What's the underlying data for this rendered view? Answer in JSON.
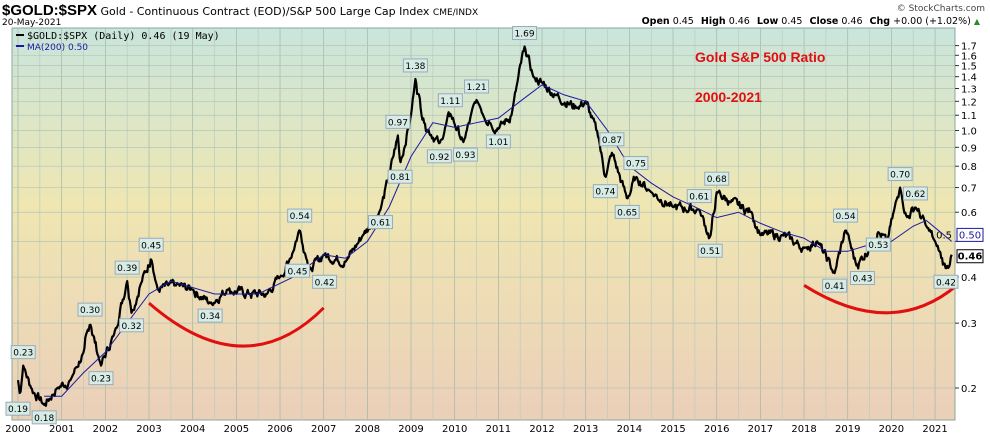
{
  "header": {
    "symbol": "$GOLD:$SPX",
    "description": "Gold - Continuous Contract (EOD)/S&P 500 Large Cap Index",
    "exchange": "CME/INDX",
    "date": "20-May-2021",
    "brand": "© StockCharts.com"
  },
  "ohlc": {
    "open_label": "Open",
    "open": "0.45",
    "high_label": "High",
    "high": "0.46",
    "low_label": "Low",
    "low": "0.45",
    "close_label": "Close",
    "close": "0.46",
    "chg_label": "Chg",
    "chg": "+0.00 (+1.02%)",
    "chg_icon": "up-triangle-icon"
  },
  "legend": {
    "price": "$GOLD:$SPX (Daily) 0.46 (19 May)",
    "ma": "MA(200) 0.50"
  },
  "colors": {
    "price": "#000000",
    "ma": "#1a1aa0",
    "annotation": "#e01010",
    "up": "#2a8a2a"
  },
  "chart_data": {
    "type": "line",
    "scale": "log",
    "title": "Gold S&P 500 Ratio",
    "subtitle": "2000-2021",
    "xlim": [
      1999.85,
      2021.55
    ],
    "ylim": [
      0.16,
      1.85
    ],
    "x_ticks": [
      "2000",
      "2001",
      "2002",
      "2003",
      "2004",
      "2005",
      "2006",
      "2007",
      "2008",
      "2009",
      "2010",
      "2011",
      "2012",
      "2013",
      "2014",
      "2015",
      "2016",
      "2017",
      "2018",
      "2019",
      "2020",
      "2021"
    ],
    "y_ticks": [
      0.2,
      0.3,
      0.4,
      0.5,
      0.6,
      0.7,
      0.8,
      0.9,
      1.0,
      1.1,
      1.2,
      1.3,
      1.4,
      1.5,
      1.6,
      1.7
    ],
    "y_tick_labels": [
      "0.2",
      "0.3",
      "0.4",
      "0.5",
      "0.6",
      "0.7",
      "0.8",
      "0.9",
      "1.0",
      "1.1",
      "1.2",
      "1.3",
      "1.4",
      "1.5",
      "1.6",
      "1.7"
    ],
    "series": [
      {
        "name": "$GOLD:$SPX",
        "x": [
          2000.0,
          2000.05,
          2000.12,
          2000.3,
          2000.6,
          2000.9,
          2001.2,
          2001.5,
          2001.65,
          2001.9,
          2002.2,
          2002.5,
          2002.6,
          2002.8,
          2003.05,
          2003.2,
          2003.6,
          2004.0,
          2004.4,
          2004.8,
          2005.3,
          2005.7,
          2006.0,
          2006.2,
          2006.45,
          2006.6,
          2006.7,
          2007.0,
          2007.5,
          2007.9,
          2008.2,
          2008.3,
          2008.5,
          2008.7,
          2008.75,
          2009.0,
          2009.1,
          2009.3,
          2009.65,
          2009.9,
          2010.2,
          2010.5,
          2010.8,
          2011.0,
          2011.3,
          2011.6,
          2011.8,
          2012.0,
          2012.3,
          2012.8,
          2013.0,
          2013.3,
          2013.45,
          2013.6,
          2013.95,
          2014.15,
          2014.5,
          2015.0,
          2015.6,
          2015.85,
          2016.0,
          2016.3,
          2016.8,
          2017.0,
          2017.5,
          2018.0,
          2018.3,
          2018.7,
          2018.95,
          2019.2,
          2019.5,
          2019.7,
          2019.9,
          2020.2,
          2020.35,
          2020.55,
          2020.8,
          2021.0,
          2021.25,
          2021.38
        ],
        "values": [
          0.21,
          0.19,
          0.23,
          0.2,
          0.18,
          0.2,
          0.21,
          0.25,
          0.3,
          0.23,
          0.28,
          0.39,
          0.32,
          0.38,
          0.45,
          0.37,
          0.38,
          0.37,
          0.34,
          0.37,
          0.36,
          0.36,
          0.4,
          0.44,
          0.54,
          0.45,
          0.42,
          0.46,
          0.44,
          0.52,
          0.58,
          0.61,
          0.75,
          0.97,
          0.81,
          1.1,
          1.38,
          1.05,
          0.92,
          1.11,
          0.93,
          1.21,
          1.05,
          1.01,
          1.1,
          1.69,
          1.4,
          1.35,
          1.25,
          1.15,
          1.2,
          0.95,
          0.74,
          0.87,
          0.65,
          0.75,
          0.68,
          0.62,
          0.61,
          0.51,
          0.68,
          0.64,
          0.6,
          0.52,
          0.52,
          0.48,
          0.5,
          0.41,
          0.54,
          0.43,
          0.48,
          0.53,
          0.5,
          0.7,
          0.58,
          0.62,
          0.55,
          0.5,
          0.42,
          0.46
        ]
      },
      {
        "name": "MA(200)",
        "x": [
          2000.6,
          2001.0,
          2001.5,
          2002.0,
          2002.5,
          2003.0,
          2003.5,
          2004.5,
          2005.5,
          2006.3,
          2007.0,
          2007.5,
          2008.0,
          2008.5,
          2009.0,
          2009.5,
          2010.0,
          2010.5,
          2011.0,
          2011.5,
          2012.0,
          2012.5,
          2013.0,
          2013.5,
          2014.0,
          2014.5,
          2015.0,
          2015.5,
          2016.0,
          2016.5,
          2017.0,
          2017.5,
          2018.0,
          2018.5,
          2019.0,
          2019.5,
          2020.0,
          2020.5,
          2020.8,
          2021.38
        ],
        "values": [
          0.19,
          0.19,
          0.22,
          0.25,
          0.3,
          0.36,
          0.39,
          0.36,
          0.36,
          0.4,
          0.46,
          0.45,
          0.5,
          0.62,
          0.85,
          1.05,
          1.02,
          1.05,
          1.08,
          1.2,
          1.33,
          1.25,
          1.2,
          1.0,
          0.8,
          0.72,
          0.66,
          0.62,
          0.58,
          0.6,
          0.56,
          0.53,
          0.51,
          0.47,
          0.47,
          0.49,
          0.5,
          0.55,
          0.57,
          0.5
        ]
      }
    ],
    "annotations": [
      {
        "x": 2000.12,
        "y": 0.23,
        "text": "0.23",
        "pos": "above"
      },
      {
        "x": 2000.0,
        "y": 0.19,
        "text": "0.19",
        "pos": "below"
      },
      {
        "x": 2000.6,
        "y": 0.18,
        "text": "0.18",
        "pos": "below"
      },
      {
        "x": 2001.65,
        "y": 0.3,
        "text": "0.30",
        "pos": "above"
      },
      {
        "x": 2001.9,
        "y": 0.23,
        "text": "0.23",
        "pos": "below"
      },
      {
        "x": 2002.5,
        "y": 0.39,
        "text": "0.39",
        "pos": "above"
      },
      {
        "x": 2002.6,
        "y": 0.32,
        "text": "0.32",
        "pos": "below"
      },
      {
        "x": 2003.05,
        "y": 0.45,
        "text": "0.45",
        "pos": "above"
      },
      {
        "x": 2004.4,
        "y": 0.34,
        "text": "0.34",
        "pos": "below"
      },
      {
        "x": 2006.45,
        "y": 0.54,
        "text": "0.54",
        "pos": "above"
      },
      {
        "x": 2006.4,
        "y": 0.45,
        "text": "0.45",
        "pos": "below"
      },
      {
        "x": 2006.7,
        "y": 0.42,
        "text": "0.42",
        "pos": "below"
      },
      {
        "x": 2008.3,
        "y": 0.61,
        "text": "0.61",
        "pos": "below"
      },
      {
        "x": 2008.75,
        "y": 0.81,
        "text": "0.81",
        "pos": "below"
      },
      {
        "x": 2008.7,
        "y": 0.97,
        "text": "0.97",
        "pos": "above"
      },
      {
        "x": 2009.1,
        "y": 1.38,
        "text": "1.38",
        "pos": "above"
      },
      {
        "x": 2009.65,
        "y": 0.92,
        "text": "0.92",
        "pos": "below"
      },
      {
        "x": 2009.9,
        "y": 1.11,
        "text": "1.11",
        "pos": "above"
      },
      {
        "x": 2010.2,
        "y": 0.93,
        "text": "0.93",
        "pos": "below"
      },
      {
        "x": 2010.5,
        "y": 1.21,
        "text": "1.21",
        "pos": "above"
      },
      {
        "x": 2011.0,
        "y": 1.01,
        "text": "1.01",
        "pos": "below"
      },
      {
        "x": 2011.6,
        "y": 1.69,
        "text": "1.69",
        "pos": "above"
      },
      {
        "x": 2013.45,
        "y": 0.74,
        "text": "0.74",
        "pos": "below"
      },
      {
        "x": 2013.6,
        "y": 0.87,
        "text": "0.87",
        "pos": "above"
      },
      {
        "x": 2013.95,
        "y": 0.65,
        "text": "0.65",
        "pos": "below"
      },
      {
        "x": 2014.15,
        "y": 0.75,
        "text": "0.75",
        "pos": "above"
      },
      {
        "x": 2015.6,
        "y": 0.61,
        "text": "0.61",
        "pos": "above"
      },
      {
        "x": 2015.85,
        "y": 0.51,
        "text": "0.51",
        "pos": "below"
      },
      {
        "x": 2016.0,
        "y": 0.68,
        "text": "0.68",
        "pos": "above"
      },
      {
        "x": 2018.7,
        "y": 0.41,
        "text": "0.41",
        "pos": "below"
      },
      {
        "x": 2018.95,
        "y": 0.54,
        "text": "0.54",
        "pos": "above"
      },
      {
        "x": 2019.2,
        "y": 0.43,
        "text": "0.43",
        "pos": "below"
      },
      {
        "x": 2019.7,
        "y": 0.53,
        "text": "0.53",
        "pos": "below"
      },
      {
        "x": 2020.2,
        "y": 0.7,
        "text": "0.70",
        "pos": "above"
      },
      {
        "x": 2020.55,
        "y": 0.62,
        "text": "0.62",
        "pos": "above"
      },
      {
        "x": 2021.25,
        "y": 0.42,
        "text": "0.42",
        "pos": "below"
      }
    ],
    "last_values": {
      "ma": "0.50",
      "price": "0.46"
    },
    "arcs": [
      {
        "x": [
          2003.0,
          2005.2,
          2007.0
        ],
        "y": [
          0.34,
          0.26,
          0.33
        ]
      },
      {
        "x": [
          2018.0,
          2020.0,
          2021.5
        ],
        "y": [
          0.38,
          0.32,
          0.38
        ]
      }
    ]
  }
}
